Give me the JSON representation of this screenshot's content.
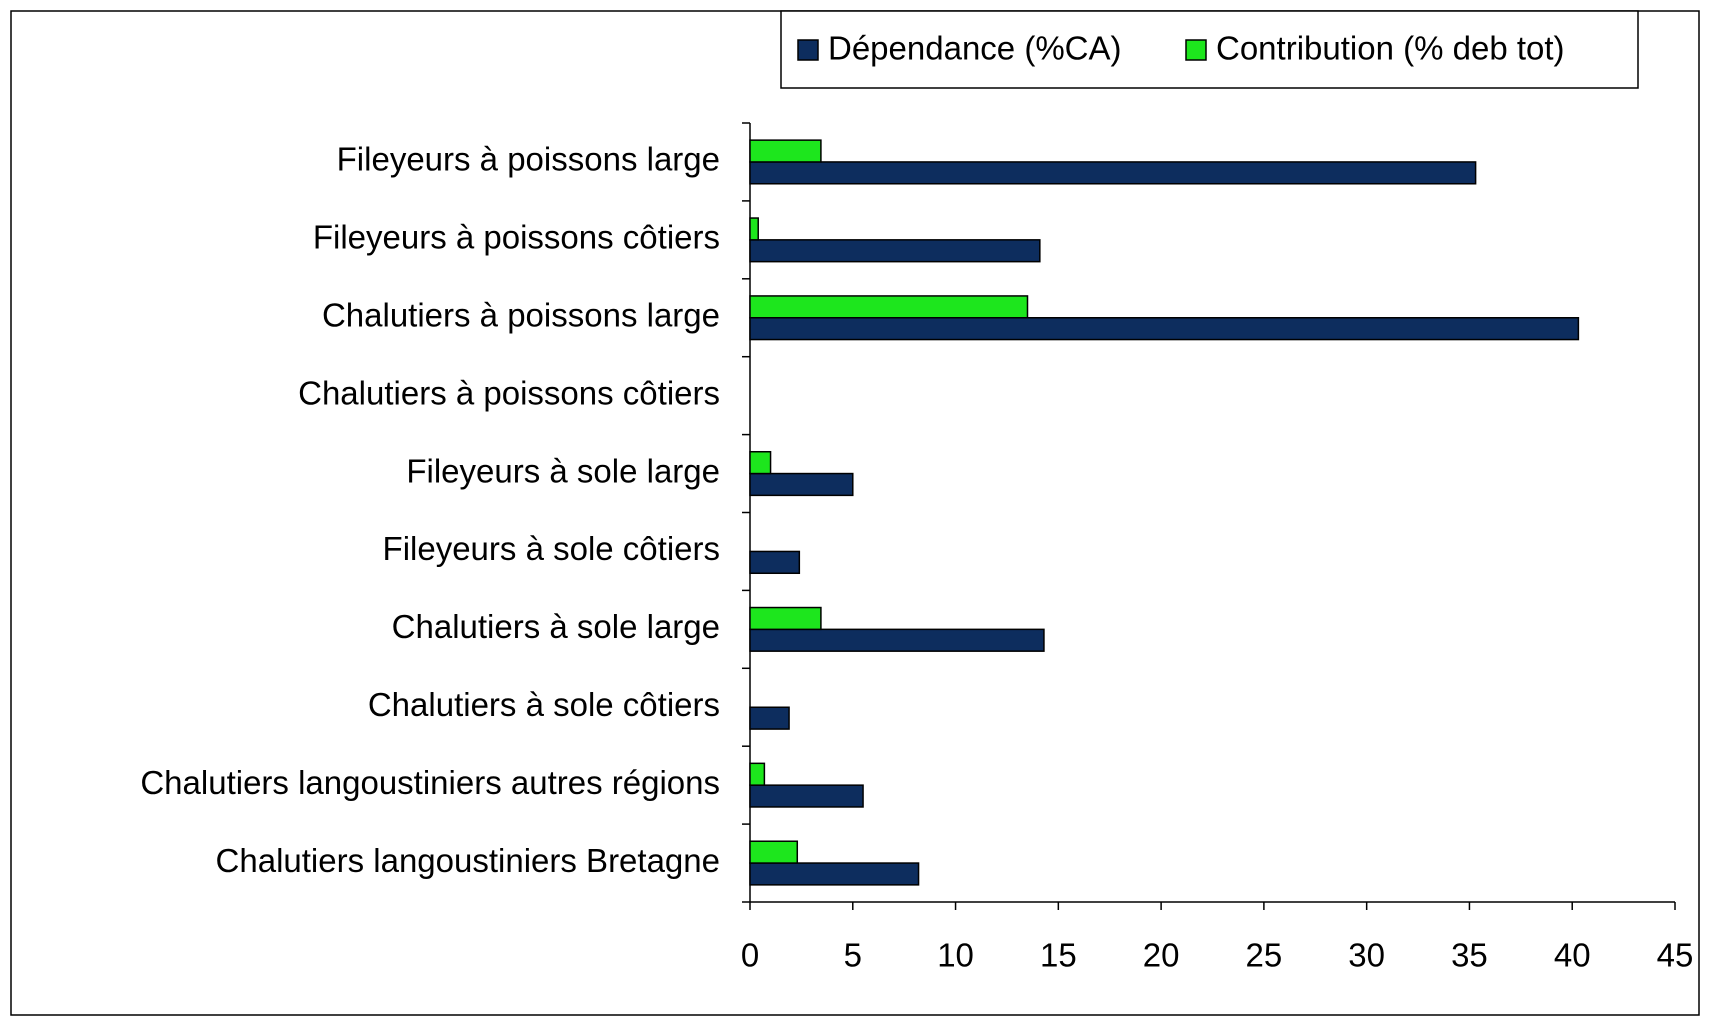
{
  "chart_data": {
    "type": "hbar",
    "categories": [
      "Fileyeurs à poissons large",
      "Fileyeurs à poissons côtiers",
      "Chalutiers à poissons large",
      "Chalutiers à poissons côtiers",
      "Fileyeurs à sole large",
      "Fileyeurs à sole côtiers",
      "Chalutiers à sole large",
      "Chalutiers à sole côtiers",
      "Chalutiers langoustiniers autres régions",
      "Chalutiers langoustiniers Bretagne"
    ],
    "series": [
      {
        "name": "Dépendance (%CA)",
        "color": "#0d2d5e",
        "values": [
          35.3,
          14.1,
          40.3,
          null,
          5.0,
          2.4,
          14.3,
          1.9,
          5.5,
          8.2
        ]
      },
      {
        "name": "Contribution (% deb tot)",
        "color": "#1de61d",
        "values": [
          3.45,
          0.4,
          13.5,
          null,
          1.0,
          null,
          3.45,
          null,
          0.7,
          2.3
        ]
      }
    ],
    "xlim": [
      0,
      45
    ],
    "xticks": [
      0,
      5,
      10,
      15,
      20,
      25,
      30,
      35,
      40,
      45
    ],
    "legend": "top"
  }
}
